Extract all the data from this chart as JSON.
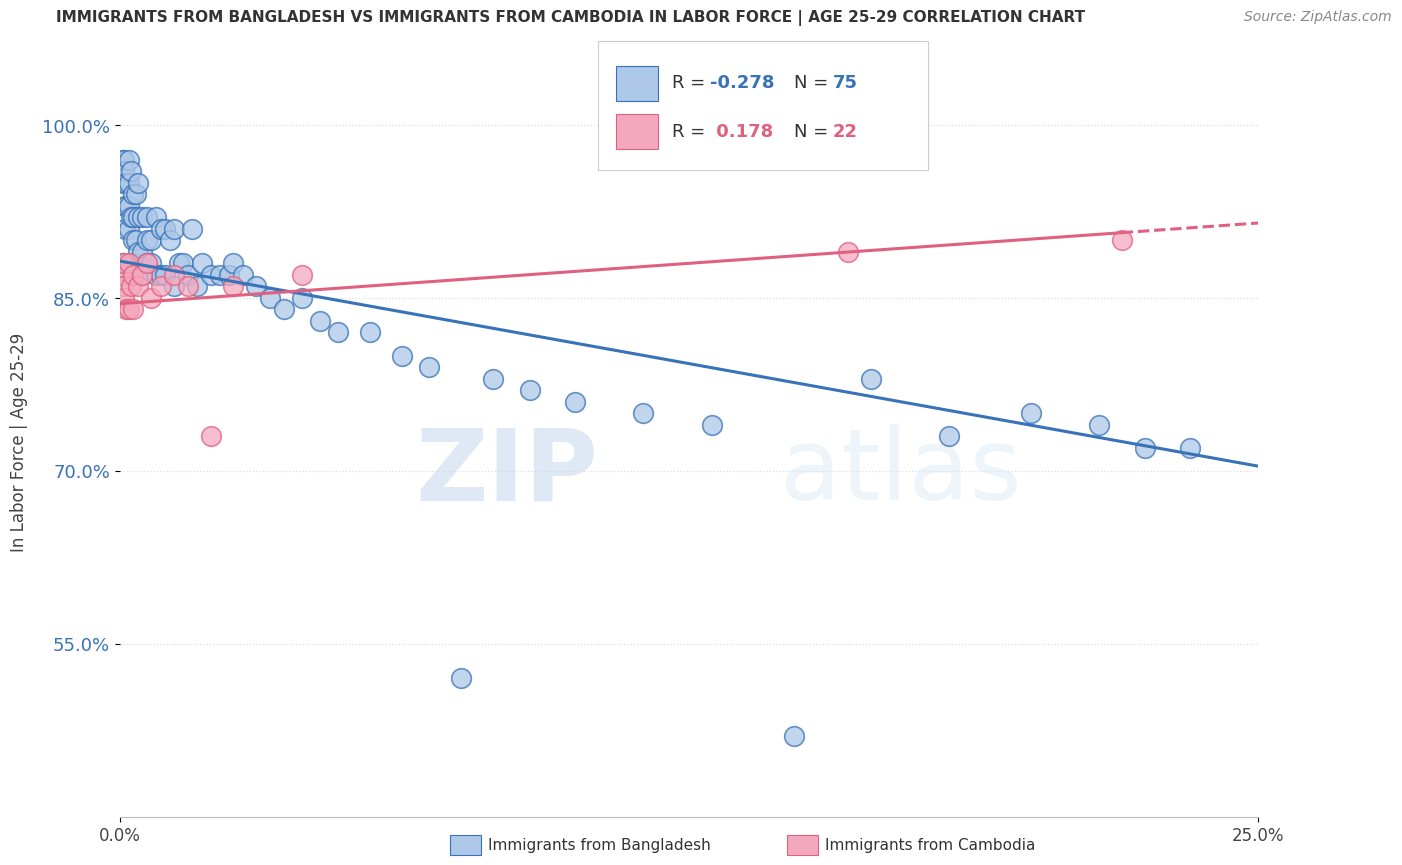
{
  "title": "IMMIGRANTS FROM BANGLADESH VS IMMIGRANTS FROM CAMBODIA IN LABOR FORCE | AGE 25-29 CORRELATION CHART",
  "source": "Source: ZipAtlas.com",
  "ylabel": "In Labor Force | Age 25-29",
  "xlim": [
    0.0,
    0.25
  ],
  "ylim": [
    0.4,
    1.05
  ],
  "yticks": [
    0.55,
    0.7,
    0.85,
    1.0
  ],
  "ytick_labels": [
    "55.0%",
    "70.0%",
    "85.0%",
    "100.0%"
  ],
  "color_bangladesh": "#adc8e8",
  "color_cambodia": "#f4a8be",
  "color_line_bangladesh": "#3872b8",
  "color_line_cambodia": "#e06080",
  "watermark_zip": "ZIP",
  "watermark_atlas": "atlas",
  "grid_color": "#dddddd",
  "background_color": "#ffffff",
  "bang_x": [
    0.0005,
    0.0005,
    0.0007,
    0.0008,
    0.001,
    0.001,
    0.0012,
    0.0012,
    0.0015,
    0.0015,
    0.002,
    0.002,
    0.002,
    0.002,
    0.0025,
    0.0025,
    0.003,
    0.003,
    0.003,
    0.003,
    0.0035,
    0.0035,
    0.004,
    0.004,
    0.004,
    0.005,
    0.005,
    0.005,
    0.006,
    0.006,
    0.006,
    0.007,
    0.007,
    0.008,
    0.008,
    0.009,
    0.009,
    0.01,
    0.01,
    0.011,
    0.012,
    0.012,
    0.013,
    0.014,
    0.015,
    0.016,
    0.017,
    0.018,
    0.02,
    0.022,
    0.024,
    0.025,
    0.027,
    0.03,
    0.033,
    0.036,
    0.04,
    0.044,
    0.048,
    0.055,
    0.062,
    0.068,
    0.075,
    0.082,
    0.09,
    0.1,
    0.115,
    0.13,
    0.148,
    0.165,
    0.182,
    0.2,
    0.215,
    0.225,
    0.235
  ],
  "bang_y": [
    0.88,
    0.87,
    0.97,
    0.95,
    0.97,
    0.96,
    0.93,
    0.91,
    0.95,
    0.93,
    0.97,
    0.95,
    0.93,
    0.91,
    0.96,
    0.92,
    0.94,
    0.92,
    0.9,
    0.88,
    0.94,
    0.9,
    0.95,
    0.92,
    0.89,
    0.92,
    0.89,
    0.87,
    0.92,
    0.9,
    0.88,
    0.9,
    0.88,
    0.92,
    0.87,
    0.91,
    0.87,
    0.91,
    0.87,
    0.9,
    0.91,
    0.86,
    0.88,
    0.88,
    0.87,
    0.91,
    0.86,
    0.88,
    0.87,
    0.87,
    0.87,
    0.88,
    0.87,
    0.86,
    0.85,
    0.84,
    0.85,
    0.83,
    0.82,
    0.82,
    0.8,
    0.79,
    0.52,
    0.78,
    0.77,
    0.76,
    0.75,
    0.74,
    0.47,
    0.78,
    0.73,
    0.75,
    0.74,
    0.72,
    0.72
  ],
  "camb_x": [
    0.0005,
    0.0008,
    0.001,
    0.001,
    0.0015,
    0.002,
    0.002,
    0.0025,
    0.003,
    0.003,
    0.004,
    0.005,
    0.006,
    0.007,
    0.009,
    0.012,
    0.015,
    0.02,
    0.025,
    0.04,
    0.16,
    0.22
  ],
  "camb_y": [
    0.87,
    0.86,
    0.88,
    0.85,
    0.84,
    0.88,
    0.84,
    0.86,
    0.87,
    0.84,
    0.86,
    0.87,
    0.88,
    0.85,
    0.86,
    0.87,
    0.86,
    0.73,
    0.86,
    0.87,
    0.89,
    0.9
  ],
  "bang_line_x": [
    0.0,
    0.25
  ],
  "bang_line_y": [
    0.882,
    0.704
  ],
  "camb_line_x": [
    0.0,
    0.25
  ],
  "camb_line_y": [
    0.845,
    0.915
  ]
}
